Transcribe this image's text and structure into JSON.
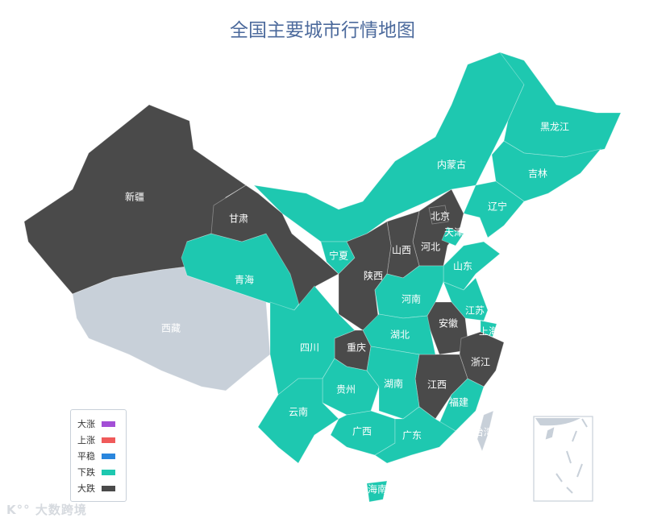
{
  "title": "全国主要城市行情地图",
  "colors": {
    "大涨": "#a34fd6",
    "上涨": "#f05a5a",
    "平稳": "#2a86dd",
    "下跌": "#1ec8b0",
    "大跌": "#4a4a4a",
    "no_data": "#c8d0d9"
  },
  "legend": [
    {
      "label": "大涨",
      "color": "#a34fd6"
    },
    {
      "label": "上涨",
      "color": "#f05a5a"
    },
    {
      "label": "平稳",
      "color": "#2a86dd"
    },
    {
      "label": "下跌",
      "color": "#1ec8b0"
    },
    {
      "label": "大跌",
      "color": "#4a4a4a"
    }
  ],
  "watermark": "大数跨境",
  "chart_data": {
    "type": "map",
    "title": "全国主要城市行情地图",
    "legend_placement": "bottom-left",
    "regions": [
      {
        "name": "新疆",
        "category": "大跌"
      },
      {
        "name": "西藏",
        "category": null
      },
      {
        "name": "青海",
        "category": "下跌"
      },
      {
        "name": "甘肃",
        "category": "大跌"
      },
      {
        "name": "内蒙古",
        "category": "下跌"
      },
      {
        "name": "黑龙江",
        "category": "下跌"
      },
      {
        "name": "吉林",
        "category": "下跌"
      },
      {
        "name": "辽宁",
        "category": "下跌"
      },
      {
        "name": "河北",
        "category": "大跌"
      },
      {
        "name": "北京",
        "category": "大跌"
      },
      {
        "name": "天津",
        "category": "下跌"
      },
      {
        "name": "山西",
        "category": "大跌"
      },
      {
        "name": "宁夏",
        "category": "下跌"
      },
      {
        "name": "陕西",
        "category": "大跌"
      },
      {
        "name": "山东",
        "category": "下跌"
      },
      {
        "name": "河南",
        "category": "下跌"
      },
      {
        "name": "江苏",
        "category": "下跌"
      },
      {
        "name": "上海",
        "category": "下跌"
      },
      {
        "name": "安徽",
        "category": "大跌"
      },
      {
        "name": "浙江",
        "category": "大跌"
      },
      {
        "name": "江西",
        "category": "大跌"
      },
      {
        "name": "福建",
        "category": "下跌"
      },
      {
        "name": "湖北",
        "category": "下跌"
      },
      {
        "name": "重庆",
        "category": "大跌"
      },
      {
        "name": "四川",
        "category": "下跌"
      },
      {
        "name": "贵州",
        "category": "下跌"
      },
      {
        "name": "湖南",
        "category": "下跌"
      },
      {
        "name": "云南",
        "category": "下跌"
      },
      {
        "name": "广西",
        "category": "下跌"
      },
      {
        "name": "广东",
        "category": "下跌"
      },
      {
        "name": "海南",
        "category": "下跌"
      },
      {
        "name": "台湾",
        "category": null
      }
    ]
  }
}
